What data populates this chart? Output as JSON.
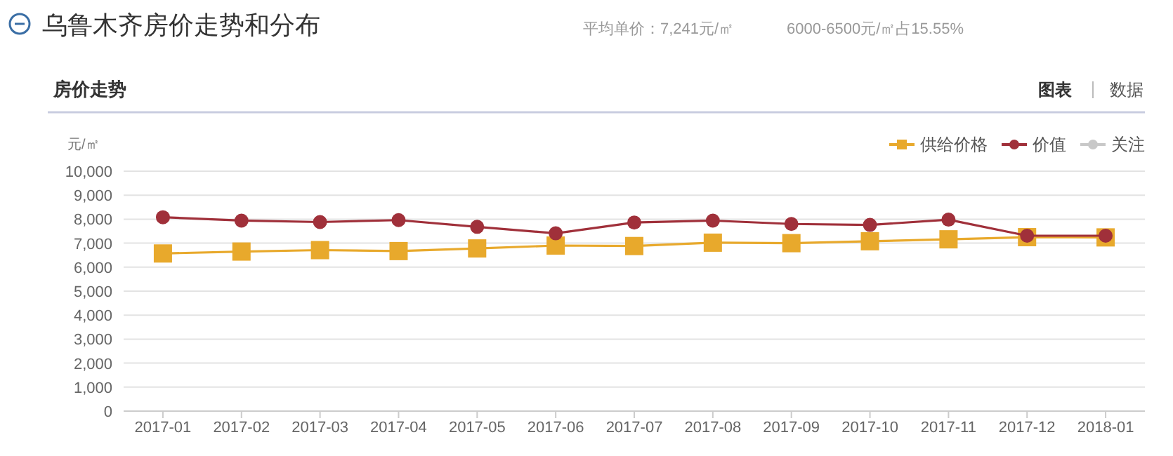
{
  "chart_data": {
    "type": "line",
    "title": "乌鲁木齐房价走势和分布",
    "subtitle": "房价走势",
    "ylabel": "元/㎡",
    "annotations": [
      "平均单价：7,241元/㎡",
      "6000-6500元/㎡占15.55%",
      "图表",
      "数据"
    ],
    "categories": [
      "2017-01",
      "2017-02",
      "2017-03",
      "2017-04",
      "2017-05",
      "2017-06",
      "2017-07",
      "2017-08",
      "2017-09",
      "2017-10",
      "2017-11",
      "2017-12",
      "2018-01"
    ],
    "ylim": [
      0,
      10000
    ],
    "yticks": [
      0,
      {
        "value": 1000,
        "label": "1,000"
      },
      {
        "value": 2000,
        "label": "2,000"
      },
      {
        "value": 3000,
        "label": "3,000"
      },
      {
        "value": 4000,
        "label": "4,000"
      },
      {
        "value": 5000,
        "label": "5,000"
      },
      {
        "value": 6000,
        "label": "6,000"
      },
      {
        "value": 7000,
        "label": "7,000"
      },
      {
        "value": 8000,
        "label": "8,000"
      },
      {
        "value": 9000,
        "label": "9,000"
      },
      {
        "value": 10000,
        "label": "10,000"
      }
    ],
    "grid": "y",
    "legend": "top right",
    "series": [
      {
        "name": "供给价格",
        "color": "#e8a92c",
        "marker": "square",
        "values": [
          6570,
          6650,
          6710,
          6670,
          6780,
          6900,
          6880,
          7020,
          7000,
          7080,
          7160,
          7250,
          7240
        ]
      },
      {
        "name": "价值",
        "color": "#a0303a",
        "marker": "circle",
        "values": [
          8080,
          7940,
          7880,
          7960,
          7680,
          7410,
          7860,
          7940,
          7800,
          7760,
          7980,
          7310,
          7310
        ]
      },
      {
        "name": "关注",
        "color": "#c8c8c8",
        "marker": "circle",
        "values": [
          null,
          null,
          null,
          null,
          null,
          null,
          null,
          null,
          null,
          null,
          null,
          null,
          null
        ]
      }
    ]
  }
}
